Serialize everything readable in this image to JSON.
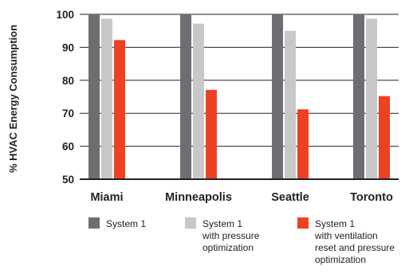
{
  "chart_data": {
    "type": "bar",
    "title": "",
    "xlabel": "",
    "ylabel": "% HVAC Energy Consumption",
    "ylim": [
      50,
      100
    ],
    "yticks": [
      50,
      60,
      70,
      80,
      90,
      100
    ],
    "grid": true,
    "legend_position": "bottom",
    "categories": [
      "Miami",
      "Minneapolis",
      "Seattle",
      "Toronto"
    ],
    "series": [
      {
        "name": "System 1",
        "legend_lines": [
          "System 1"
        ],
        "color": "#6d6e71",
        "values": [
          100,
          100,
          100,
          100
        ]
      },
      {
        "name": "System 1 with pressure optimization",
        "legend_lines": [
          "System 1",
          "with pressure",
          "optimization"
        ],
        "color": "#c8c8c8",
        "values": [
          98.7,
          97.2,
          95,
          98.7
        ]
      },
      {
        "name": "System 1 with ventilation reset and pressure optimization",
        "legend_lines": [
          "System 1",
          "with ventilation",
          "reset and pressure",
          "optimization"
        ],
        "color": "#ee4123",
        "values": [
          92.2,
          77.1,
          71.2,
          75.2
        ]
      }
    ]
  }
}
